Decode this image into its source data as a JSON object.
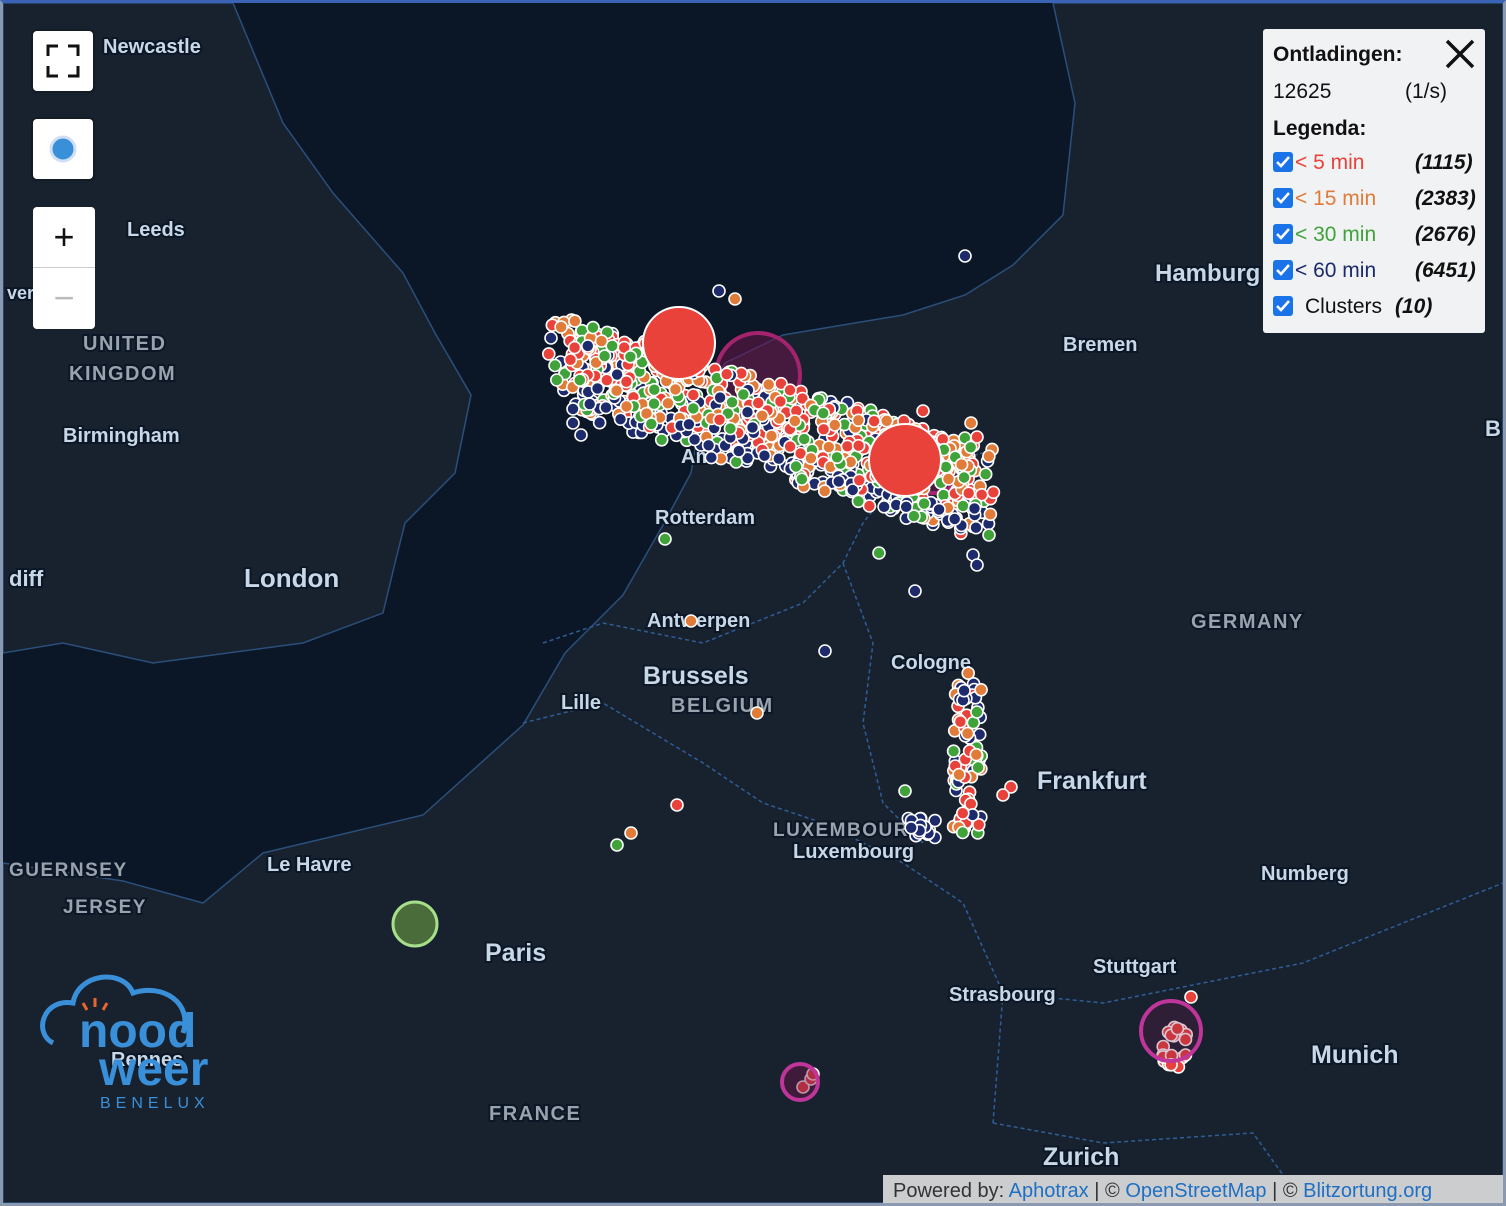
{
  "controls": {
    "zoom_in": "+",
    "zoom_out": "−"
  },
  "legend": {
    "title": "Ontladingen:",
    "count": "12625",
    "rate": "(1/s)",
    "heading": "Legenda:",
    "items": [
      {
        "label": "< 5 min",
        "count": "(1115)",
        "color": "#e8423a"
      },
      {
        "label": "< 15 min",
        "count": "(2383)",
        "color": "#e07b39"
      },
      {
        "label": "< 30 min",
        "count": "(2676)",
        "color": "#3fa33a"
      },
      {
        "label": "< 60 min",
        "count": "(6451)",
        "color": "#1d2a6b"
      },
      {
        "label": "Clusters",
        "count": "(10)",
        "color": "#222222"
      }
    ]
  },
  "map_labels": [
    "Newcastle",
    "Leeds",
    "ver",
    "UNITED",
    "KINGDOM",
    "Birmingham",
    "diff",
    "London",
    "Hamburg",
    "Bremen",
    "B",
    "GERMANY",
    "Rotterdam",
    "Am",
    "Antwerpen",
    "Brussels",
    "BELGIUM",
    "Lille",
    "Cologne",
    "Frankfurt",
    "LUXEMBOURG",
    "Luxembourg",
    "GUERNSEY",
    "JERSEY",
    "Le Havre",
    "Paris",
    "Numberg",
    "Stuttgart",
    "Strasbourg",
    "Munich",
    "Rennes",
    "FRANCE",
    "Zurich"
  ],
  "logo": {
    "line1": "nood",
    "line2": "weer",
    "line3": "BENELUX"
  },
  "attribution": {
    "prefix": "Powered by:",
    "separator": "| ©",
    "links": [
      "Aphotrax",
      "OpenStreetMap",
      "Blitzortung.org"
    ]
  }
}
